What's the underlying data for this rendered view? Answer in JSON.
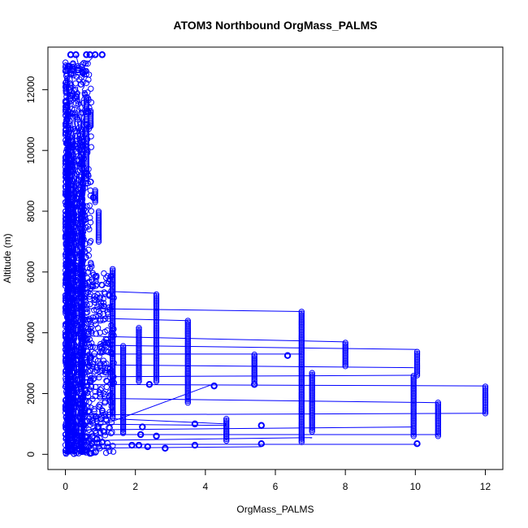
{
  "chart_data": {
    "type": "scatter",
    "title": "ATOM3 Northbound OrgMass_PALMS",
    "xlabel": "OrgMass_PALMS",
    "ylabel": "Altitude (m)",
    "xlim": [
      -0.5,
      12.5
    ],
    "ylim": [
      -500,
      13400
    ],
    "x_ticks": [
      0,
      2,
      4,
      6,
      8,
      10,
      12
    ],
    "y_ticks": [
      0,
      2000,
      4000,
      6000,
      8000,
      10000,
      12000
    ],
    "x_tick_labels": [
      "0",
      "2",
      "4",
      "6",
      "8",
      "10",
      "12"
    ],
    "y_tick_labels": [
      "0",
      "2000",
      "4000",
      "6000",
      "8000",
      "10000",
      "12000"
    ],
    "grid": false,
    "legend": "none",
    "series_color": "#0000ff",
    "marker": "open-circle",
    "connected": true,
    "columns": [
      {
        "x": 1.35,
        "ymin": 1200,
        "ymax": 6100
      },
      {
        "x": 1.65,
        "ymin": 700,
        "ymax": 3600
      },
      {
        "x": 2.1,
        "ymin": 2400,
        "ymax": 4200
      },
      {
        "x": 2.6,
        "ymin": 2400,
        "ymax": 5300
      },
      {
        "x": 3.5,
        "ymin": 1700,
        "ymax": 4400
      },
      {
        "x": 4.6,
        "ymin": 450,
        "ymax": 1200
      },
      {
        "x": 5.4,
        "ymin": 2400,
        "ymax": 3300
      },
      {
        "x": 6.75,
        "ymin": 400,
        "ymax": 4700
      },
      {
        "x": 7.05,
        "ymin": 750,
        "ymax": 2700
      },
      {
        "x": 8.0,
        "ymin": 2900,
        "ymax": 3700
      },
      {
        "x": 9.95,
        "ymin": 600,
        "ymax": 2600
      },
      {
        "x": 10.05,
        "ymin": 2600,
        "ymax": 3400
      },
      {
        "x": 10.65,
        "ymin": 600,
        "ymax": 1700
      },
      {
        "x": 12.0,
        "ymin": 1350,
        "ymax": 2250
      }
    ],
    "points": [
      [
        0.15,
        13150
      ],
      [
        0.3,
        13150
      ],
      [
        0.6,
        13150
      ],
      [
        0.7,
        13150
      ],
      [
        0.85,
        13150
      ],
      [
        1.05,
        13150
      ],
      [
        0.5,
        12550
      ],
      [
        0.35,
        12650
      ],
      [
        0.8,
        8450
      ],
      [
        0.65,
        11250
      ],
      [
        6.35,
        3250
      ],
      [
        2.4,
        2300
      ],
      [
        4.25,
        2250
      ],
      [
        5.4,
        2300
      ],
      [
        2.6,
        600
      ],
      [
        3.7,
        1000
      ],
      [
        5.6,
        950
      ],
      [
        2.1,
        300
      ],
      [
        2.35,
        250
      ],
      [
        2.85,
        200
      ],
      [
        3.7,
        300
      ],
      [
        5.6,
        350
      ],
      [
        10.05,
        350
      ],
      [
        1.9,
        300
      ],
      [
        2.15,
        650
      ],
      [
        2.2,
        900
      ],
      [
        0.9,
        500
      ],
      [
        1.05,
        400
      ]
    ],
    "segments": [
      [
        [
          0.3,
          5400
        ],
        [
          2.6,
          5300
        ]
      ],
      [
        [
          0.3,
          4800
        ],
        [
          6.75,
          4700
        ]
      ],
      [
        [
          0.2,
          4500
        ],
        [
          3.5,
          4400
        ]
      ],
      [
        [
          0.2,
          3900
        ],
        [
          8.0,
          3700
        ]
      ],
      [
        [
          0.3,
          3600
        ],
        [
          10.05,
          3450
        ]
      ],
      [
        [
          0.2,
          3300
        ],
        [
          6.75,
          3300
        ]
      ],
      [
        [
          0.2,
          2950
        ],
        [
          10.0,
          2850
        ]
      ],
      [
        [
          0.3,
          2550
        ],
        [
          9.95,
          2600
        ]
      ],
      [
        [
          0.2,
          2300
        ],
        [
          12.0,
          2250
        ]
      ],
      [
        [
          0.2,
          1850
        ],
        [
          10.65,
          1700
        ]
      ],
      [
        [
          0.3,
          1300
        ],
        [
          12.0,
          1350
        ]
      ],
      [
        [
          0.2,
          1000
        ],
        [
          4.6,
          950
        ]
      ],
      [
        [
          0.2,
          800
        ],
        [
          9.95,
          900
        ]
      ],
      [
        [
          0.2,
          650
        ],
        [
          10.65,
          650
        ]
      ],
      [
        [
          0.2,
          450
        ],
        [
          7.05,
          550
        ]
      ],
      [
        [
          0.2,
          330
        ],
        [
          10.05,
          330
        ]
      ],
      [
        [
          0.2,
          200
        ],
        [
          5.6,
          250
        ]
      ],
      [
        [
          0.2,
          600
        ],
        [
          4.2,
          2300
        ]
      ],
      [
        [
          0.8,
          1200
        ],
        [
          4.6,
          1000
        ]
      ],
      [
        [
          0.4,
          12600
        ],
        [
          0.85,
          13150
        ]
      ],
      [
        [
          0.4,
          12700
        ],
        [
          0.3,
          13150
        ]
      ]
    ]
  }
}
